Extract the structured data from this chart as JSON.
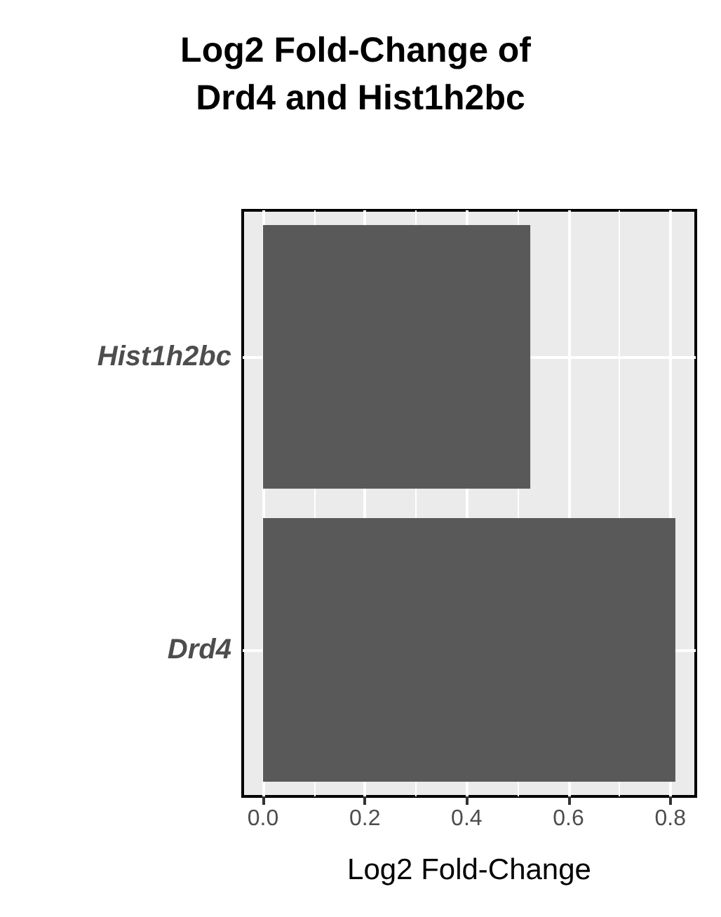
{
  "chart_data": {
    "type": "bar",
    "orientation": "horizontal",
    "title": "Log2 Fold-Change of Drd4 and Hist1h2bc",
    "xlabel": "Log2 Fold-Change",
    "categories": [
      "Hist1h2bc",
      "Drd4"
    ],
    "values": [
      0.525,
      0.81
    ],
    "color": "#595959",
    "xlim": [
      -0.04,
      0.85
    ],
    "xticks": [
      {
        "value": 0,
        "label": "0.0"
      },
      0.2,
      0.4,
      0.6,
      0.8
    ],
    "grid": true
  }
}
